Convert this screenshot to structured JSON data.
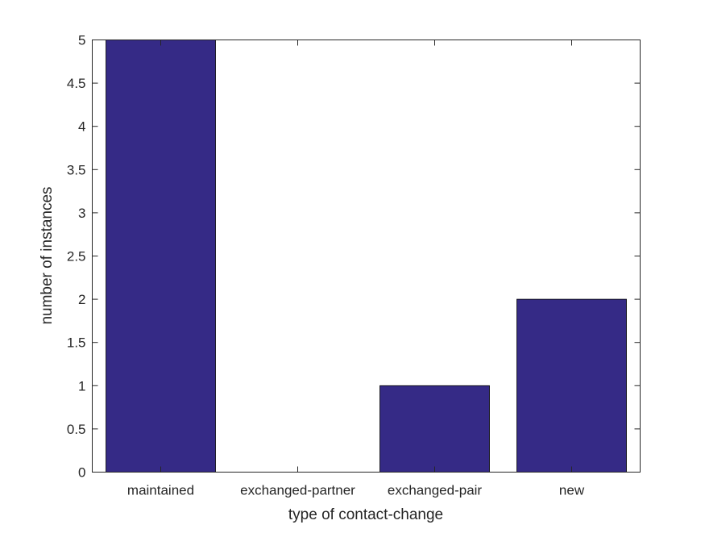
{
  "chart_data": {
    "type": "bar",
    "categories": [
      "maintained",
      "exchanged-partner",
      "exchanged-pair",
      "new"
    ],
    "values": [
      5,
      0,
      1,
      2
    ],
    "title": "",
    "xlabel": "type of contact-change",
    "ylabel": "number of instances",
    "ylim": [
      0,
      5
    ],
    "yticks": [
      "0",
      "0.5",
      "1",
      "1.5",
      "2",
      "2.5",
      "3",
      "3.5",
      "4",
      "4.5",
      "5"
    ],
    "grid": false,
    "bar_color": "#352a86"
  }
}
